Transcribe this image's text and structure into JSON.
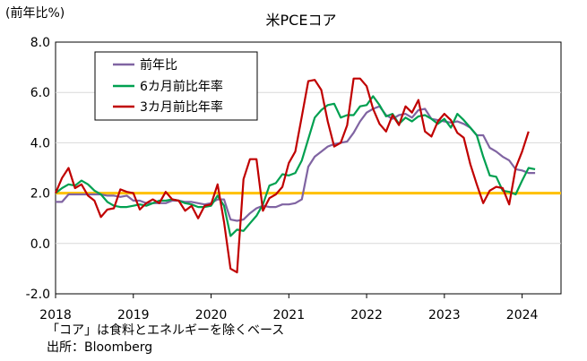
{
  "chart_data": {
    "type": "line",
    "title": "米PCEコア",
    "ylabel": "(前年比%)",
    "ylim": [
      -2.0,
      8.0
    ],
    "yticks": [
      "8.0",
      "6.0",
      "4.0",
      "2.0",
      "0.0",
      "-2.0"
    ],
    "ytick_values": [
      8,
      6,
      4,
      2,
      0,
      -2
    ],
    "xlim": [
      2018.0,
      2024.5
    ],
    "xticks": [
      "2018",
      "2019",
      "2020",
      "2021",
      "2022",
      "2023",
      "2024"
    ],
    "xtick_values": [
      2018,
      2019,
      2020,
      2021,
      2022,
      2023,
      2024
    ],
    "legend_position": "top-left",
    "reference_line": {
      "y": 2.0,
      "color": "#FFC000"
    },
    "start_year": 2018,
    "series": [
      {
        "name": "前年比",
        "color": "#8064A2",
        "values": [
          1.65,
          1.65,
          1.95,
          1.95,
          1.95,
          1.95,
          1.95,
          1.95,
          1.9,
          1.9,
          1.85,
          1.9,
          1.7,
          1.7,
          1.6,
          1.6,
          1.6,
          1.6,
          1.7,
          1.7,
          1.65,
          1.65,
          1.6,
          1.55,
          1.6,
          1.75,
          1.75,
          0.95,
          0.9,
          0.95,
          1.2,
          1.4,
          1.5,
          1.45,
          1.45,
          1.55,
          1.55,
          1.6,
          1.75,
          3.05,
          3.45,
          3.65,
          3.85,
          3.95,
          4.0,
          4.05,
          4.4,
          4.85,
          5.2,
          5.35,
          5.45,
          5.1,
          4.95,
          5.1,
          5.15,
          5.0,
          5.3,
          5.35,
          4.95,
          4.9,
          4.85,
          4.8,
          4.85,
          4.75,
          4.6,
          4.3,
          4.3,
          3.8,
          3.65,
          3.45,
          3.3,
          2.95,
          2.9,
          2.8,
          2.8
        ]
      },
      {
        "name": "6カ月前比年率",
        "color": "#00A050",
        "values": [
          2.0,
          2.2,
          2.35,
          2.3,
          2.5,
          2.35,
          2.1,
          1.95,
          1.65,
          1.5,
          1.45,
          1.45,
          1.5,
          1.55,
          1.5,
          1.6,
          1.7,
          1.7,
          1.75,
          1.7,
          1.6,
          1.55,
          1.45,
          1.45,
          1.5,
          1.9,
          1.5,
          0.3,
          0.55,
          0.5,
          0.8,
          1.1,
          1.55,
          2.3,
          2.4,
          2.75,
          2.7,
          2.8,
          3.3,
          4.15,
          5.0,
          5.3,
          5.5,
          5.55,
          5.0,
          5.1,
          5.1,
          5.45,
          5.5,
          5.85,
          5.5,
          5.05,
          5.15,
          4.75,
          5.0,
          4.85,
          5.05,
          5.1,
          4.95,
          4.75,
          4.95,
          4.6,
          5.15,
          4.9,
          4.6,
          4.3,
          3.45,
          2.7,
          2.65,
          2.1,
          2.05,
          1.95,
          2.5,
          3.0,
          2.95
        ]
      },
      {
        "name": "3カ月前比年率",
        "color": "#C00000",
        "values": [
          2.0,
          2.6,
          3.0,
          2.2,
          2.35,
          1.9,
          1.7,
          1.05,
          1.35,
          1.4,
          2.15,
          2.05,
          2.0,
          1.35,
          1.6,
          1.75,
          1.6,
          2.05,
          1.75,
          1.7,
          1.3,
          1.5,
          1.0,
          1.5,
          1.55,
          2.35,
          0.85,
          -1.0,
          -1.15,
          2.55,
          3.35,
          3.35,
          1.3,
          1.8,
          1.95,
          2.25,
          3.2,
          3.65,
          5.05,
          6.45,
          6.5,
          6.1,
          4.85,
          3.85,
          4.0,
          4.7,
          6.55,
          6.55,
          6.25,
          5.35,
          4.75,
          4.45,
          5.1,
          4.7,
          5.45,
          5.2,
          5.7,
          4.45,
          4.25,
          4.85,
          5.15,
          4.9,
          4.4,
          4.2,
          3.15,
          2.35,
          1.6,
          2.1,
          2.25,
          2.2,
          1.55,
          3.0,
          3.65,
          4.45
        ]
      }
    ]
  },
  "footnotes": [
    "「コア」は食料とエネルギーを除くベース",
    "出所：Bloomberg"
  ]
}
